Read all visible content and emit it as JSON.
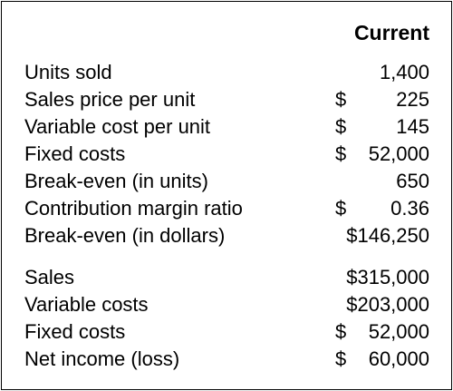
{
  "table": {
    "column_header": "Current",
    "rows": [
      {
        "label": "Units sold",
        "currency": "",
        "value": "1,400"
      },
      {
        "label": "Sales price per unit",
        "currency": "$",
        "value": "225"
      },
      {
        "label": "Variable cost per unit",
        "currency": "$",
        "value": "145"
      },
      {
        "label": "Fixed costs",
        "currency": "$",
        "value": "52,000"
      },
      {
        "label": "Break-even (in units)",
        "currency": "",
        "value": "650"
      },
      {
        "label": "Contribution margin ratio",
        "currency": "$",
        "value": "0.36"
      },
      {
        "label": "Break-even (in dollars)",
        "currency": "",
        "value": "$146,250"
      },
      {
        "label": "Sales",
        "currency": "",
        "value": "$315,000"
      },
      {
        "label": "Variable costs",
        "currency": "",
        "value": "$203,000"
      },
      {
        "label": "Fixed costs",
        "currency": "$",
        "value": "52,000"
      },
      {
        "label": "Net income (loss)",
        "currency": "$",
        "value": "60,000"
      }
    ]
  }
}
